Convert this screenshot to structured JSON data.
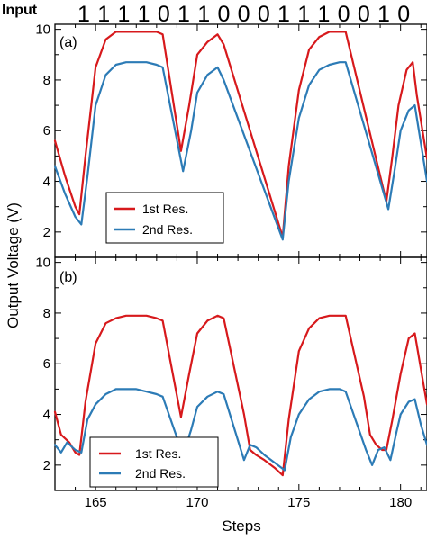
{
  "input_sequence": {
    "title": "Input",
    "bits": [
      "1",
      "1",
      "1",
      "1",
      "0",
      "1",
      "1",
      "0",
      "0",
      "0",
      "1",
      "1",
      "1",
      "0",
      "0",
      "1",
      "0"
    ]
  },
  "colors": {
    "res1": "#d7191c",
    "res2": "#2c7bb6"
  },
  "chart_data": [
    {
      "type": "line",
      "panel_label": "(a)",
      "xlabel": "Steps",
      "ylabel": "Output Voltage (V)",
      "xlim": [
        163,
        181.3
      ],
      "ylim": [
        1,
        10.2
      ],
      "y_ticks": [
        2,
        4,
        6,
        8,
        10
      ],
      "y_tick_labels": [
        "2",
        "4",
        "6",
        "8",
        "10"
      ],
      "grid": false,
      "legend_position": "lower-left",
      "series": [
        {
          "name": "1st Res.",
          "x": [
            163.0,
            163.5,
            164.0,
            164.2,
            164.5,
            165.0,
            165.5,
            166.0,
            166.5,
            167.0,
            167.5,
            168.0,
            168.3,
            169.2,
            169.6,
            170.0,
            170.5,
            171.0,
            171.3,
            174.2,
            174.5,
            175.0,
            175.5,
            176.0,
            176.5,
            177.0,
            177.3,
            179.3,
            179.6,
            179.9,
            180.3,
            180.6,
            180.8,
            181.3
          ],
          "values": [
            5.6,
            4.2,
            3.0,
            2.7,
            5.0,
            8.5,
            9.6,
            9.9,
            9.9,
            9.9,
            9.9,
            9.9,
            9.8,
            5.2,
            7.0,
            9.0,
            9.5,
            9.8,
            9.4,
            1.8,
            4.6,
            7.6,
            9.2,
            9.7,
            9.9,
            9.9,
            9.9,
            3.2,
            5.0,
            7.0,
            8.4,
            8.7,
            7.4,
            4.9
          ]
        },
        {
          "name": "2nd Res.",
          "x": [
            163.0,
            163.5,
            164.0,
            164.3,
            164.6,
            165.0,
            165.5,
            166.0,
            166.5,
            167.0,
            167.5,
            168.0,
            168.3,
            169.3,
            169.7,
            170.0,
            170.5,
            171.0,
            171.3,
            174.2,
            174.5,
            175.0,
            175.5,
            176.0,
            176.5,
            177.0,
            177.3,
            179.4,
            179.7,
            180.0,
            180.4,
            180.7,
            180.9,
            181.3
          ],
          "values": [
            4.6,
            3.5,
            2.6,
            2.3,
            4.2,
            7.0,
            8.2,
            8.6,
            8.7,
            8.7,
            8.7,
            8.6,
            8.5,
            4.4,
            6.0,
            7.5,
            8.2,
            8.5,
            8.0,
            1.7,
            4.0,
            6.5,
            7.8,
            8.4,
            8.6,
            8.7,
            8.7,
            2.9,
            4.4,
            6.0,
            6.8,
            7.0,
            6.0,
            4.0
          ]
        }
      ]
    },
    {
      "type": "line",
      "panel_label": "(b)",
      "xlabel": "Steps",
      "ylabel": "Output Voltage (V)",
      "xlim": [
        163,
        181.3
      ],
      "ylim": [
        1,
        10.2
      ],
      "x_ticks": [
        165,
        170,
        175,
        180
      ],
      "x_tick_labels": [
        "165",
        "170",
        "175",
        "180"
      ],
      "y_ticks": [
        2,
        4,
        6,
        8,
        10
      ],
      "y_tick_labels": [
        "2",
        "4",
        "6",
        "8",
        "10"
      ],
      "grid": false,
      "legend_position": "lower-left",
      "series": [
        {
          "name": "1st Res.",
          "x": [
            163.0,
            163.3,
            163.7,
            164.0,
            164.2,
            164.5,
            165.0,
            165.5,
            166.0,
            166.5,
            167.0,
            167.5,
            168.0,
            168.3,
            169.2,
            169.6,
            170.0,
            170.5,
            171.0,
            171.3,
            172.3,
            172.6,
            172.9,
            173.3,
            173.8,
            174.2,
            174.5,
            175.0,
            175.5,
            176.0,
            176.5,
            177.0,
            177.3,
            178.2,
            178.5,
            178.8,
            179.1,
            179.3,
            179.6,
            180.0,
            180.4,
            180.7,
            181.0,
            181.3
          ],
          "values": [
            4.1,
            3.2,
            2.9,
            2.5,
            2.4,
            4.5,
            6.8,
            7.6,
            7.8,
            7.9,
            7.9,
            7.9,
            7.8,
            7.7,
            3.9,
            5.6,
            7.2,
            7.7,
            7.9,
            7.8,
            4.0,
            2.6,
            2.4,
            2.2,
            1.9,
            1.6,
            3.8,
            6.5,
            7.4,
            7.8,
            7.9,
            7.9,
            7.9,
            4.7,
            3.2,
            2.8,
            2.6,
            2.6,
            3.8,
            5.6,
            7.0,
            7.2,
            5.8,
            4.4
          ]
        },
        {
          "name": "2nd Res.",
          "x": [
            163.0,
            163.3,
            163.6,
            164.0,
            164.3,
            164.6,
            165.0,
            165.5,
            166.0,
            166.5,
            167.0,
            167.5,
            168.0,
            168.3,
            169.3,
            169.7,
            170.0,
            170.5,
            171.0,
            171.3,
            172.3,
            172.6,
            172.9,
            173.3,
            173.8,
            174.3,
            174.6,
            175.0,
            175.5,
            176.0,
            176.5,
            177.0,
            177.3,
            178.3,
            178.6,
            178.9,
            179.2,
            179.5,
            179.8,
            180.0,
            180.4,
            180.7,
            181.0,
            181.3
          ],
          "values": [
            2.8,
            2.5,
            2.9,
            2.6,
            2.5,
            3.8,
            4.4,
            4.8,
            5.0,
            5.0,
            5.0,
            4.9,
            4.8,
            4.7,
            2.4,
            3.4,
            4.3,
            4.7,
            4.9,
            4.8,
            2.2,
            2.8,
            2.7,
            2.4,
            2.1,
            1.8,
            3.1,
            4.0,
            4.6,
            4.9,
            5.0,
            5.0,
            4.9,
            2.6,
            2.0,
            2.6,
            2.7,
            2.2,
            3.3,
            4.0,
            4.5,
            4.6,
            3.6,
            2.8
          ]
        }
      ]
    }
  ]
}
